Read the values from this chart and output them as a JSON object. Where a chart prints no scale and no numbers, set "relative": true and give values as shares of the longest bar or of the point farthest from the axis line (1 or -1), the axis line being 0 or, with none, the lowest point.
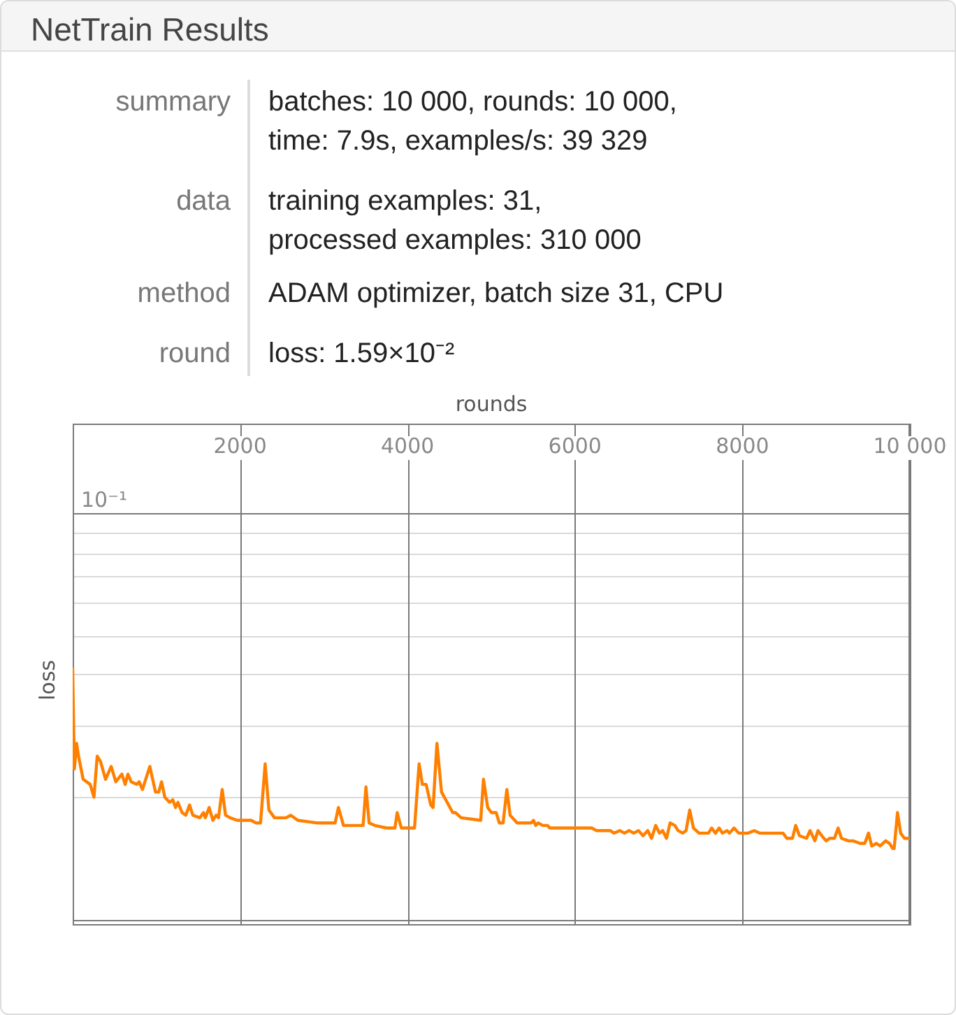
{
  "chart_data": {
    "type": "line",
    "title": "NetTrain Results",
    "xlabel": "rounds",
    "ylabel": "loss",
    "annotations": [
      "summary",
      "batches: 10 000, rounds: 10 000,",
      "time: 7.9s, examples/s: 39 329",
      "data",
      "training examples: 31,",
      "processed examples: 310 000",
      "method",
      "ADAM optimizer, batch size 31, CPU",
      "round",
      "loss: 1.59×10⁻²"
    ],
    "relative": true,
    "xlim": [
      0,
      10000
    ],
    "xticks": [
      2000,
      4000,
      6000,
      8000,
      {
        "value": 10000,
        "label": "10 000"
      }
    ],
    "grid": "x",
    "ref_lines": [
      {
        "axis": "y",
        "value": 0.02,
        "color": "#7a7a7a"
      },
      {
        "axis": "y",
        "value": 0.5,
        "color": "#dadada"
      },
      {
        "axis": "y",
        "value": 0.78,
        "color": "#dadada"
      },
      {
        "axis": "y",
        "value": 0.98,
        "color": "#dadada"
      },
      {
        "axis": "y",
        "value": 1.13,
        "color": "#dadada"
      },
      {
        "axis": "y",
        "value": 1.26,
        "color": "#dadada"
      },
      {
        "axis": "y",
        "value": 1.36,
        "color": "#dadada"
      },
      {
        "axis": "y",
        "value": 1.45,
        "color": "#dadada"
      },
      {
        "axis": "y",
        "value": 1.53,
        "color": "#dadada"
      },
      {
        "axis": "y",
        "value": 1.61,
        "label": "10⁻¹",
        "color": "#7a7a7a"
      }
    ],
    "series": [
      {
        "color": "#ff8000",
        "x": [
          0,
          20,
          47,
          70,
          125,
          209,
          254,
          293,
          332,
          393,
          460,
          515,
          588,
          627,
          660,
          699,
          766,
          794,
          833,
          922,
          989,
          1028,
          1062,
          1101,
          1157,
          1196,
          1229,
          1257,
          1307,
          1351,
          1396,
          1435,
          1518,
          1563,
          1585,
          1630,
          1675,
          1714,
          1742,
          1786,
          1826,
          1881,
          1965,
          2077,
          2132,
          2187,
          2244,
          2299,
          2344,
          2411,
          2550,
          2605,
          2689,
          2912,
          3135,
          3174,
          3235,
          3357,
          3469,
          3503,
          3541,
          3608,
          3749,
          3849,
          3876,
          3926,
          3999,
          4083,
          4138,
          4177,
          4222,
          4277,
          4305,
          4351,
          4406,
          4473,
          4540,
          4573,
          4640,
          4874,
          4907,
          4957,
          5002,
          5058,
          5096,
          5141,
          5186,
          5225,
          5309,
          5476,
          5504,
          5531,
          5559,
          5615,
          5671,
          5699,
          5810,
          6033,
          6145,
          6200,
          6256,
          6423,
          6467,
          6535,
          6591,
          6646,
          6702,
          6758,
          6813,
          6869,
          6914,
          6964,
          7009,
          7047,
          7093,
          7136,
          7193,
          7231,
          7287,
          7327,
          7370,
          7415,
          7482,
          7594,
          7633,
          7678,
          7721,
          7761,
          7817,
          7845,
          7900,
          7956,
          8067,
          8140,
          8206,
          8374,
          8485,
          8530,
          8597,
          8636,
          8681,
          8765,
          8808,
          8865,
          8903,
          8948,
          8999,
          9042,
          9099,
          9143,
          9183,
          9266,
          9322,
          9405,
          9461,
          9506,
          9544,
          9601,
          9645,
          9711,
          9757,
          9795,
          9812,
          9852,
          9890,
          9935,
          10000
        ],
        "values": [
          1.0,
          0.61,
          0.71,
          0.66,
          0.57,
          0.55,
          0.5,
          0.66,
          0.64,
          0.57,
          0.62,
          0.56,
          0.59,
          0.55,
          0.59,
          0.56,
          0.55,
          0.56,
          0.53,
          0.62,
          0.52,
          0.52,
          0.56,
          0.5,
          0.48,
          0.49,
          0.46,
          0.48,
          0.44,
          0.43,
          0.47,
          0.43,
          0.42,
          0.44,
          0.42,
          0.46,
          0.41,
          0.43,
          0.42,
          0.53,
          0.43,
          0.42,
          0.41,
          0.41,
          0.41,
          0.4,
          0.4,
          0.63,
          0.45,
          0.42,
          0.42,
          0.43,
          0.41,
          0.4,
          0.4,
          0.46,
          0.39,
          0.39,
          0.39,
          0.54,
          0.4,
          0.39,
          0.38,
          0.38,
          0.44,
          0.38,
          0.38,
          0.38,
          0.63,
          0.55,
          0.55,
          0.47,
          0.46,
          0.71,
          0.52,
          0.48,
          0.44,
          0.44,
          0.42,
          0.41,
          0.57,
          0.46,
          0.44,
          0.44,
          0.4,
          0.4,
          0.53,
          0.43,
          0.4,
          0.4,
          0.41,
          0.39,
          0.4,
          0.39,
          0.39,
          0.38,
          0.38,
          0.38,
          0.38,
          0.38,
          0.37,
          0.37,
          0.36,
          0.37,
          0.36,
          0.37,
          0.36,
          0.37,
          0.35,
          0.37,
          0.34,
          0.39,
          0.36,
          0.37,
          0.34,
          0.4,
          0.39,
          0.37,
          0.36,
          0.37,
          0.45,
          0.38,
          0.36,
          0.36,
          0.38,
          0.36,
          0.38,
          0.36,
          0.37,
          0.36,
          0.38,
          0.36,
          0.36,
          0.37,
          0.36,
          0.36,
          0.36,
          0.34,
          0.34,
          0.39,
          0.35,
          0.34,
          0.37,
          0.33,
          0.37,
          0.35,
          0.33,
          0.34,
          0.34,
          0.38,
          0.34,
          0.33,
          0.33,
          0.32,
          0.32,
          0.36,
          0.31,
          0.32,
          0.31,
          0.33,
          0.32,
          0.3,
          0.3,
          0.44,
          0.36,
          0.34,
          0.34
        ]
      }
    ]
  }
}
